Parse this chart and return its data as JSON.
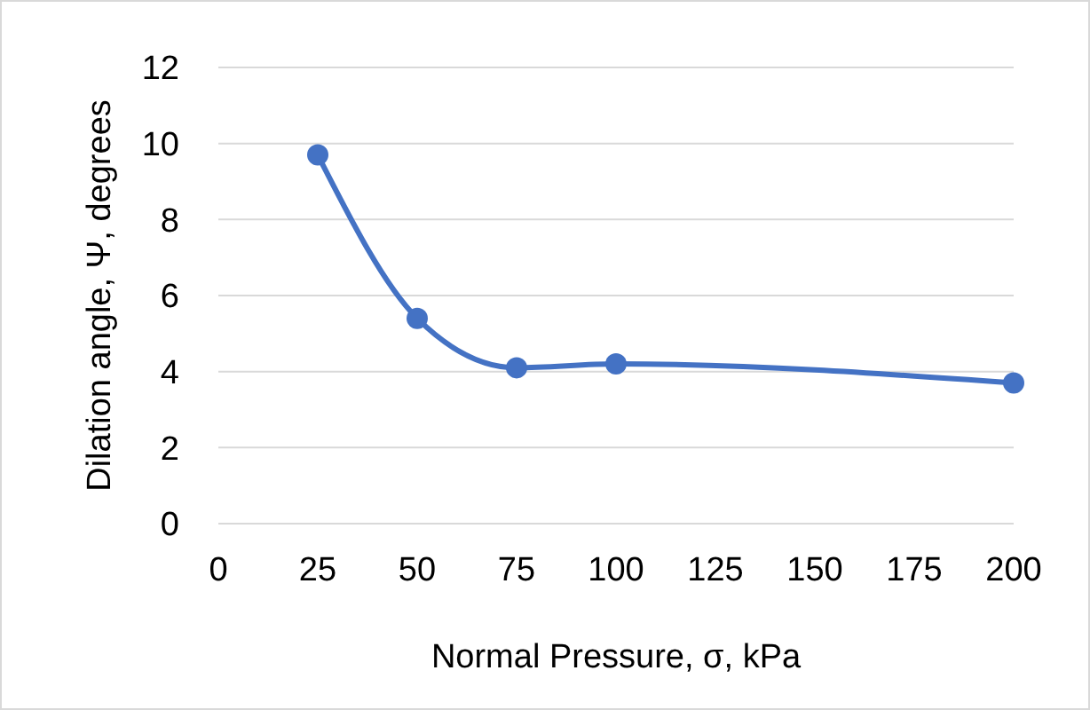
{
  "chart_data": {
    "type": "line",
    "xlabel": "Normal Pressure, σ, kPa",
    "ylabel": "Dilation angle, Ψ, degrees",
    "x": [
      25,
      50,
      75,
      100,
      200
    ],
    "series": [
      {
        "color": "#4472c4",
        "values": [
          9.7,
          5.4,
          4.1,
          4.2,
          3.7
        ]
      }
    ],
    "xlim": [
      0,
      200
    ],
    "xticks": [
      0,
      25,
      50,
      75,
      100,
      125,
      150,
      175,
      200
    ],
    "ylim": [
      0,
      12
    ],
    "yticks": [
      0,
      2,
      4,
      6,
      8,
      10,
      12
    ],
    "grid": "y",
    "marker": "circle",
    "line_style": "solid"
  }
}
